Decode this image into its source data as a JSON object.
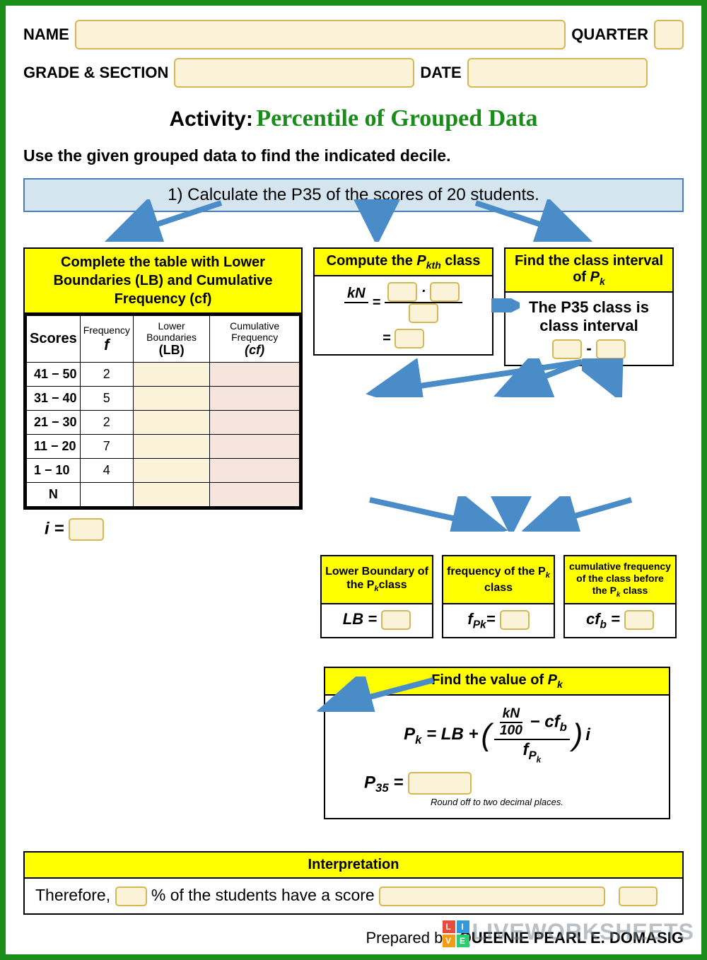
{
  "header": {
    "name_label": "NAME",
    "quarter_label": "QUARTER",
    "grade_label": "GRADE & SECTION",
    "date_label": "DATE"
  },
  "title": {
    "prefix": "Activity:",
    "main": "Percentile of Grouped Data"
  },
  "instruction": "Use the given grouped data to find the indicated decile.",
  "question": "1) Calculate the P35 of the scores of 20 students.",
  "table": {
    "header": "Complete the table with Lower Boundaries (LB) and Cumulative Frequency (cf)",
    "columns": {
      "scores": "Scores",
      "freq": "Frequency",
      "freq_sym": "f",
      "lb": "Lower Boundaries",
      "lb_sym": "(LB)",
      "cf": "Cumulative Frequency",
      "cf_sym": "(cf)"
    },
    "rows": [
      {
        "scores": "41 − 50",
        "f": "2"
      },
      {
        "scores": "31 − 40",
        "f": "5"
      },
      {
        "scores": "21 − 30",
        "f": "2"
      },
      {
        "scores": "11 − 20",
        "f": "7"
      },
      {
        "scores": "1 − 10",
        "f": "4"
      }
    ],
    "n_label": "N",
    "i_label": "i ="
  },
  "compute": {
    "header_prefix": "Compute the ",
    "header_var": "P",
    "header_sub": "kth",
    "header_suffix": " class",
    "frac_num": "kN",
    "eq": "="
  },
  "interval": {
    "header_prefix": "Find the class interval of ",
    "header_var": "P",
    "header_sub": "k",
    "body_line1": "The P35 class is",
    "body_line2": "class interval",
    "dash": "-"
  },
  "mini": {
    "lb_header": "Lower Boundary of the P",
    "lb_sub": "k",
    "lb_suffix": "class",
    "lb_eq": "LB =",
    "f_header": "frequency of the P",
    "f_sub": "k",
    "f_suffix": " class",
    "f_eq_prefix": "f",
    "f_eq_sub": "Pk",
    "f_eq": "=",
    "cf_header": "cumulative frequency of the class before the P",
    "cf_sub": "k",
    "cf_suffix": " class",
    "cf_eq_prefix": "cf",
    "cf_eq_sub": "b",
    "cf_eq": " ="
  },
  "formula": {
    "header_prefix": "Find the value of ",
    "header_var": "P",
    "header_sub": "k",
    "pk": "P",
    "pk_sub": "k",
    "eq": " = LB + ",
    "frac_top_left": "kN",
    "frac_top_div": "100",
    "minus": " − cf",
    "cfb_sub": "b",
    "frac_bot": "f",
    "frac_bot_sub_p": "P",
    "frac_bot_sub_k": "k",
    "times_i": " i",
    "p35": "P",
    "p35_sub": "35",
    "p35_eq": " =",
    "note": "Round off to two decimal places."
  },
  "interp": {
    "header": "Interpretation",
    "text1": "Therefore, ",
    "text2": "% of the students have a score "
  },
  "prepared": {
    "label": "Prepared  by: ",
    "name": "QUEENIE PEARL E. DOMASIG"
  },
  "watermark": {
    "text": "LIVEWORKSHEETS",
    "logo": {
      "l": "L",
      "i": "I",
      "v": "V",
      "e": "E"
    }
  },
  "colors": {
    "arrow": "#4a8cc7",
    "green": "#1a8c1a",
    "yellow": "#ffff00",
    "field_bg": "#faf3d9",
    "field_border": "#d4b855",
    "blue_bg": "#d5e5f0",
    "cf_bg": "#f5e5dc"
  }
}
